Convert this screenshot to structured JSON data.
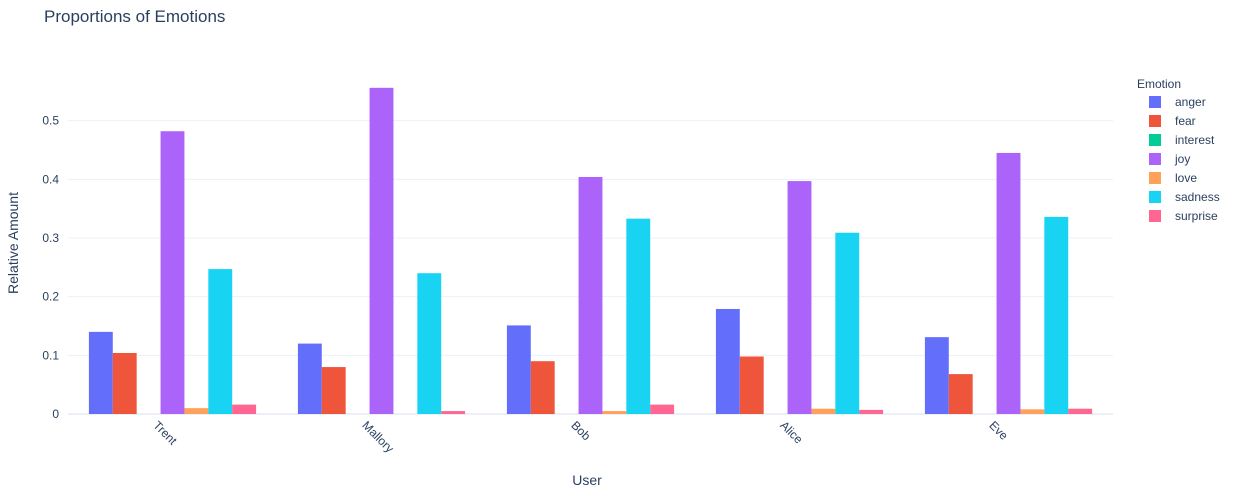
{
  "chart_data": {
    "type": "bar",
    "title": "Proportions of Emotions",
    "xlabel": "User",
    "ylabel": "Relative Amount",
    "legend_title": "Emotion",
    "legend_position": "right",
    "grid": true,
    "ylim": [
      0,
      0.6
    ],
    "yticks": [
      0,
      0.1,
      0.2,
      0.3,
      0.4,
      0.5
    ],
    "ytick_labels": [
      "0",
      "0.1",
      "0.2",
      "0.3",
      "0.4",
      "0.5"
    ],
    "categories": [
      "Trent",
      "Mallory",
      "Bob",
      "Alice",
      "Eve"
    ],
    "series": [
      {
        "name": "anger",
        "color": "#636efa",
        "values": [
          0.14,
          0.12,
          0.151,
          0.179,
          0.131
        ]
      },
      {
        "name": "fear",
        "color": "#ef553b",
        "values": [
          0.104,
          0.08,
          0.09,
          0.098,
          0.068
        ]
      },
      {
        "name": "interest",
        "color": "#00cc96",
        "values": [
          0,
          0,
          0,
          0,
          0
        ]
      },
      {
        "name": "joy",
        "color": "#ab63fa",
        "values": [
          0.482,
          0.556,
          0.404,
          0.397,
          0.445
        ]
      },
      {
        "name": "love",
        "color": "#ffa15a",
        "values": [
          0.01,
          0.0,
          0.005,
          0.009,
          0.008
        ]
      },
      {
        "name": "sadness",
        "color": "#19d3f3",
        "values": [
          0.247,
          0.24,
          0.333,
          0.309,
          0.336
        ]
      },
      {
        "name": "surprise",
        "color": "#ff6692",
        "values": [
          0.016,
          0.005,
          0.016,
          0.007,
          0.009
        ]
      }
    ]
  }
}
